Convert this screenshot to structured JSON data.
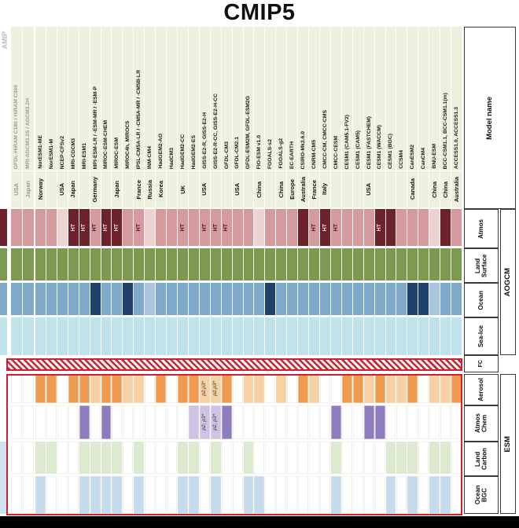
{
  "title": "CMIP5",
  "amip": {
    "label": "AMIP",
    "models": [
      {
        "name": "GFDL-HiRAM C180 / HiRAM C360",
        "country": "USA"
      },
      {
        "name": "MRI-AGCM3.2S / AGCM3.2H",
        "country": "Japan"
      }
    ]
  },
  "labels": {
    "model_name": "Model name",
    "atmos": "Atmos",
    "land_surface": "Land Surface",
    "ocean": "Ocean",
    "sea_ice": "Sea-Ice",
    "fc": "FC",
    "aerosol": "Aerosol",
    "atmos_chem": "Atmos Chem",
    "land_carbon": "Land Carbon",
    "ocean_bgc": "Ocean BGC",
    "aogcm": "AOGCM",
    "esm": "ESM"
  },
  "colors": {
    "header_bg": "#eef1dd",
    "atmos": {
      "light": "#eed3d3",
      "medium": "#d49a9e",
      "dark": "#6e222c"
    },
    "land": "#7c9b50",
    "ocean": {
      "light": "#a9c6de",
      "medium": "#7ea9c9",
      "dark": "#20416b"
    },
    "seaice": "#c0e3eb",
    "aerosol": {
      "light": "#f7d1a3",
      "medium": "#f09a4f"
    },
    "chem": {
      "light": "#cdc3e5",
      "medium": "#8d7cbf"
    },
    "carbon": "#dcead0",
    "bgc": "#c4dbee",
    "fc_red": "#cf2030"
  },
  "chart_data": {
    "type": "heatmap",
    "title": "CMIP5",
    "rows": [
      "Model name",
      "Country",
      "Atmos",
      "Land Surface",
      "Ocean",
      "Sea-Ice",
      "FC",
      "Aerosol",
      "Atmos Chem",
      "Land Carbon",
      "Ocean BGC"
    ],
    "row_groups": [
      {
        "label": "AOGCM",
        "rows": [
          "Atmos",
          "Land Surface",
          "Ocean",
          "Sea-Ice"
        ]
      },
      {
        "label": "ESM",
        "rows": [
          "Aerosol",
          "Atmos Chem",
          "Land Carbon",
          "Ocean BGC"
        ]
      }
    ],
    "shade_levels": [
      "none",
      "light",
      "medium",
      "dark"
    ],
    "notes": {
      "ht": "HT"
    },
    "models": [
      {
        "name": "NorESM1-ME",
        "country": "Norway",
        "atmos": "medium",
        "ht": false,
        "ocean": "medium",
        "aerosol": "medium",
        "chem": "none",
        "land_carbon": true,
        "ocean_bgc": true
      },
      {
        "name": "NorESM1-M",
        "country": "",
        "atmos": "medium",
        "ht": false,
        "ocean": "medium",
        "aerosol": "medium",
        "chem": "none",
        "land_carbon": true,
        "ocean_bgc": false
      },
      {
        "name": "NCEP-CFSv2",
        "country": "USA",
        "atmos": "light",
        "ht": false,
        "ocean": "medium",
        "aerosol": "none",
        "chem": "none",
        "land_carbon": false,
        "ocean_bgc": false
      },
      {
        "name": "MRI-CGCM3",
        "country": "Japan",
        "atmos": "dark",
        "ht": true,
        "ocean": "medium",
        "aerosol": "medium",
        "chem": "none",
        "land_carbon": false,
        "ocean_bgc": false
      },
      {
        "name": "MRI-ESM1",
        "country": "",
        "atmos": "dark",
        "ht": true,
        "ocean": "medium",
        "aerosol": "medium",
        "chem": "medium",
        "land_carbon": true,
        "ocean_bgc": true
      },
      {
        "name": "MPI-ESM-LR / -ESM-MR / -ESM-P",
        "country": "Germany",
        "atmos": "medium",
        "ht": true,
        "ocean": "dark",
        "aerosol": "light",
        "chem": "none",
        "land_carbon": true,
        "ocean_bgc": true
      },
      {
        "name": "MIROC-ESM-CHEM",
        "country": "",
        "atmos": "dark",
        "ht": true,
        "ocean": "medium",
        "aerosol": "medium",
        "chem": "medium",
        "land_carbon": true,
        "ocean_bgc": true
      },
      {
        "name": "MIROC-ESM",
        "country": "Japan",
        "atmos": "dark",
        "ht": true,
        "ocean": "medium",
        "aerosol": "medium",
        "chem": "none",
        "land_carbon": true,
        "ocean_bgc": true
      },
      {
        "name": "MIROC4h, MIROC5",
        "country": "",
        "atmos": "medium",
        "ht": false,
        "ocean": "dark",
        "aerosol": "light",
        "chem": "none",
        "land_carbon": false,
        "ocean_bgc": false
      },
      {
        "name": "IPSL-CM5A-LR / -CM5A-MR / -CM5B-LR",
        "country": "France",
        "atmos": "medium",
        "ht": true,
        "ocean": "medium",
        "aerosol": "light",
        "chem": "none",
        "land_carbon": true,
        "ocean_bgc": true
      },
      {
        "name": "INM-CM4",
        "country": "Russia",
        "atmos": "light",
        "ht": false,
        "ocean": "light",
        "aerosol": "none",
        "chem": "none",
        "land_carbon": false,
        "ocean_bgc": false
      },
      {
        "name": "HadGEM2-AO",
        "country": "Korea",
        "atmos": "medium",
        "ht": false,
        "ocean": "medium",
        "aerosol": "medium",
        "chem": "none",
        "land_carbon": false,
        "ocean_bgc": false
      },
      {
        "name": "HadCM3",
        "country": "",
        "atmos": "medium",
        "ht": false,
        "ocean": "medium",
        "aerosol": "none",
        "chem": "none",
        "land_carbon": false,
        "ocean_bgc": false
      },
      {
        "name": "HadGEM2-CC",
        "country": "UK",
        "atmos": "medium",
        "ht": true,
        "ocean": "medium",
        "aerosol": "medium",
        "chem": "none",
        "land_carbon": true,
        "ocean_bgc": true
      },
      {
        "name": "HadGEM2-ES",
        "country": "",
        "atmos": "medium",
        "ht": false,
        "ocean": "medium",
        "aerosol": "medium",
        "chem": "light",
        "land_carbon": true,
        "ocean_bgc": true
      },
      {
        "name": "GISS-E2-R, GISS-E2-H",
        "country": "USA",
        "atmos": "medium",
        "ht": true,
        "ocean": "medium",
        "aerosol": "light",
        "aerosol_note": "p2,p3*",
        "chem": "light",
        "chem_note": "p2, p3*",
        "land_carbon": false,
        "ocean_bgc": false
      },
      {
        "name": "GISS-E2-R-CC, GISS-E2-H-CC",
        "country": "",
        "atmos": "medium",
        "ht": true,
        "ocean": "medium",
        "aerosol": "light",
        "aerosol_note": "p2,p3*",
        "chem": "light",
        "chem_note": "p2, p3*",
        "land_carbon": true,
        "ocean_bgc": true
      },
      {
        "name": "GFDL-CM3",
        "country": "",
        "atmos": "medium",
        "ht": true,
        "ocean": "medium",
        "aerosol": "medium",
        "chem": "medium",
        "land_carbon": false,
        "ocean_bgc": false
      },
      {
        "name": "GFDL-CM2.1",
        "country": "USA",
        "atmos": "medium",
        "ht": false,
        "ocean": "medium",
        "aerosol": "none",
        "chem": "none",
        "land_carbon": false,
        "ocean_bgc": false
      },
      {
        "name": "GFDL-ESM2M, GFDL-ESM2G",
        "country": "",
        "atmos": "medium",
        "ht": false,
        "ocean": "medium",
        "aerosol": "light",
        "chem": "none",
        "land_carbon": true,
        "ocean_bgc": true
      },
      {
        "name": "FIO-ESM v1.0",
        "country": "China",
        "atmos": "light",
        "ht": false,
        "ocean": "medium",
        "aerosol": "light",
        "chem": "none",
        "land_carbon": false,
        "ocean_bgc": true
      },
      {
        "name": "FGOALS-s2",
        "country": "",
        "atmos": "medium",
        "ht": false,
        "ocean": "dark",
        "aerosol": "none",
        "chem": "none",
        "land_carbon": false,
        "ocean_bgc": false
      },
      {
        "name": "FGOALS-g2",
        "country": "China",
        "atmos": "medium",
        "ht": false,
        "ocean": "medium",
        "aerosol": "light",
        "chem": "none",
        "land_carbon": false,
        "ocean_bgc": false
      },
      {
        "name": "EC-EARTH",
        "country": "Europe",
        "atmos": "medium",
        "ht": false,
        "ocean": "medium",
        "aerosol": "none",
        "chem": "none",
        "land_carbon": false,
        "ocean_bgc": false
      },
      {
        "name": "CSIRO-Mk3.6.0",
        "country": "Australia",
        "atmos": "dark",
        "ht": false,
        "ocean": "medium",
        "aerosol": "medium",
        "chem": "none",
        "land_carbon": false,
        "ocean_bgc": false
      },
      {
        "name": "CNRM-CM5",
        "country": "France",
        "atmos": "medium",
        "ht": true,
        "ocean": "medium",
        "aerosol": "light",
        "chem": "none",
        "land_carbon": false,
        "ocean_bgc": false
      },
      {
        "name": "CMCC-CM, CMCC-CMS",
        "country": "Italy",
        "atmos": "dark",
        "ht": true,
        "ocean": "medium",
        "aerosol": "none",
        "chem": "none",
        "land_carbon": false,
        "ocean_bgc": false
      },
      {
        "name": "CMCC-CESM",
        "country": "",
        "atmos": "medium",
        "ht": true,
        "ocean": "medium",
        "aerosol": "none",
        "chem": "medium",
        "land_carbon": true,
        "ocean_bgc": true
      },
      {
        "name": "CESM1 (CAM5.1-FV2)",
        "country": "",
        "atmos": "medium",
        "ht": false,
        "ocean": "medium",
        "aerosol": "medium",
        "chem": "none",
        "land_carbon": false,
        "ocean_bgc": false
      },
      {
        "name": "CESM1 (CAM5)",
        "country": "",
        "atmos": "medium",
        "ht": false,
        "ocean": "medium",
        "aerosol": "medium",
        "chem": "none",
        "land_carbon": false,
        "ocean_bgc": false
      },
      {
        "name": "CESM1 (FASTCHEM)",
        "country": "USA",
        "atmos": "medium",
        "ht": false,
        "ocean": "medium",
        "aerosol": "light",
        "chem": "medium",
        "land_carbon": false,
        "ocean_bgc": false
      },
      {
        "name": "CESM1 (WACCM)",
        "country": "",
        "atmos": "dark",
        "ht": true,
        "ocean": "medium",
        "aerosol": "medium",
        "chem": "medium",
        "land_carbon": false,
        "ocean_bgc": false
      },
      {
        "name": "CESM1 (BGC)",
        "country": "",
        "atmos": "dark",
        "ht": false,
        "ocean": "medium",
        "aerosol": "light",
        "chem": "none",
        "land_carbon": true,
        "ocean_bgc": true
      },
      {
        "name": "CCSM4",
        "country": "",
        "atmos": "medium",
        "ht": false,
        "ocean": "medium",
        "aerosol": "light",
        "chem": "none",
        "land_carbon": true,
        "ocean_bgc": false
      },
      {
        "name": "CanESM2",
        "country": "Canada",
        "atmos": "medium",
        "ht": false,
        "ocean": "dark",
        "aerosol": "medium",
        "chem": "none",
        "land_carbon": true,
        "ocean_bgc": true
      },
      {
        "name": "CanCM4",
        "country": "",
        "atmos": "medium",
        "ht": false,
        "ocean": "dark",
        "aerosol": "none",
        "chem": "none",
        "land_carbon": false,
        "ocean_bgc": false
      },
      {
        "name": "BNU-ESM",
        "country": "China",
        "atmos": "light",
        "ht": false,
        "ocean": "light",
        "aerosol": "light",
        "chem": "none",
        "land_carbon": true,
        "ocean_bgc": true
      },
      {
        "name": "BCC-CSM1.1, BCC-CSM1.1(m)",
        "country": "China",
        "atmos": "dark",
        "ht": false,
        "ocean": "medium",
        "aerosol": "light",
        "chem": "none",
        "land_carbon": true,
        "ocean_bgc": true
      },
      {
        "name": "ACCESS1.0, ACCESS1.3",
        "country": "Australia",
        "atmos": "medium",
        "ht": false,
        "ocean": "medium",
        "aerosol": "medium",
        "chem": "none",
        "land_carbon": false,
        "ocean_bgc": false
      }
    ]
  }
}
